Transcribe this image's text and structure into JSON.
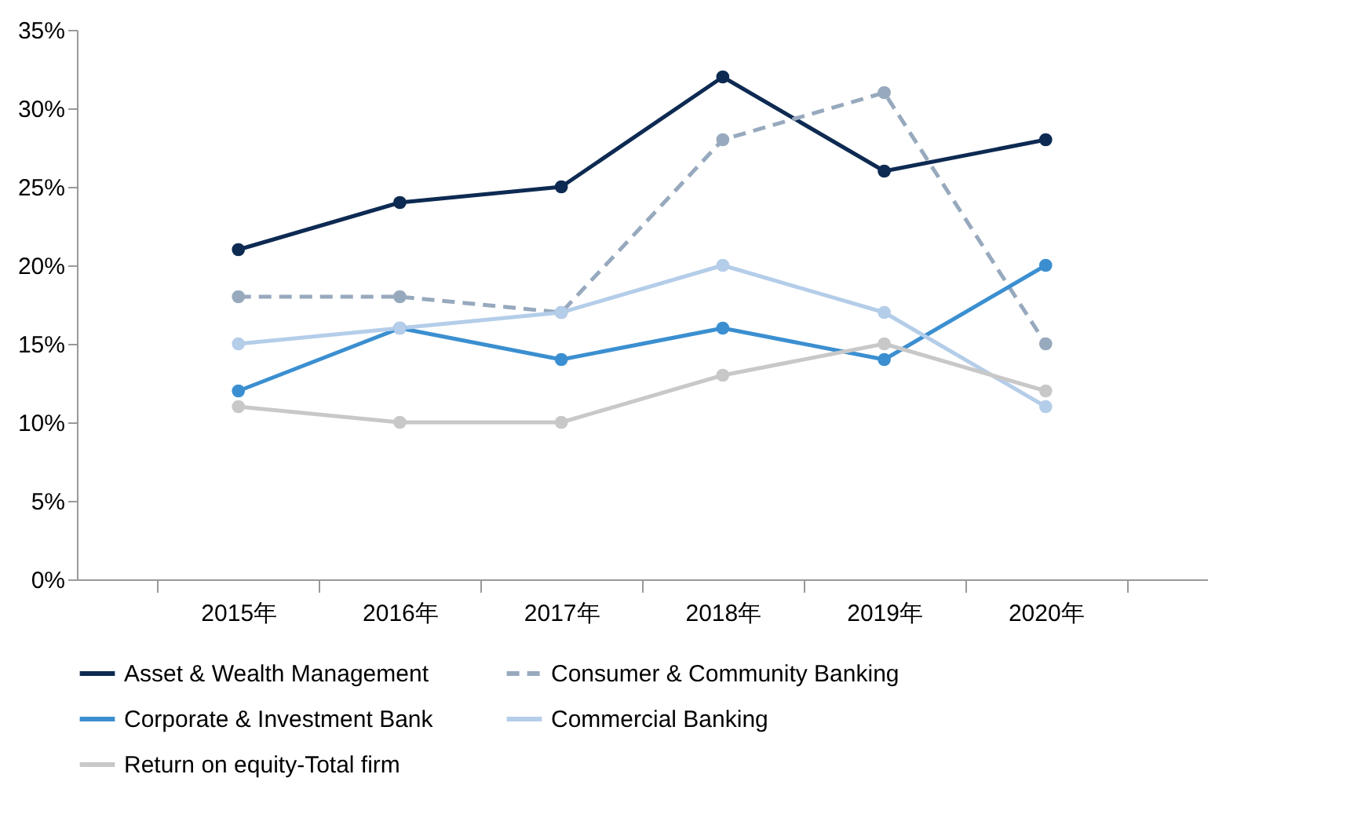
{
  "chart_data": {
    "type": "line",
    "categories": [
      "2015年",
      "2016年",
      "2017年",
      "2018年",
      "2019年",
      "2020年"
    ],
    "ylim": [
      0,
      35
    ],
    "yticks": [
      {
        "value": 0,
        "label": "0%"
      },
      {
        "value": 5,
        "label": "5%"
      },
      {
        "value": 10,
        "label": "10%"
      },
      {
        "value": 15,
        "label": "15%"
      },
      {
        "value": 20,
        "label": "20%"
      },
      {
        "value": 25,
        "label": "25%"
      },
      {
        "value": 30,
        "label": "30%"
      },
      {
        "value": 35,
        "label": "35%"
      }
    ],
    "grid": false,
    "legend": "bottom",
    "marker": "circle",
    "series": [
      {
        "name": "Asset & Wealth Management",
        "color": "#0d2a52",
        "values": [
          21,
          24,
          25,
          32,
          26,
          28
        ],
        "line_style": "solid"
      },
      {
        "name": "Consumer & Community Banking",
        "color": "#97a9bd",
        "values": [
          18,
          18,
          17,
          28,
          31,
          15
        ],
        "line_style": "dashed"
      },
      {
        "name": "Corporate & Investment Bank",
        "color": "#3b8fd0",
        "values": [
          12,
          16,
          14,
          16,
          14,
          20
        ],
        "line_style": "solid"
      },
      {
        "name": "Commercial Banking",
        "color": "#b4cde9",
        "values": [
          15,
          16,
          17,
          20,
          17,
          11
        ],
        "line_style": "solid"
      },
      {
        "name": "Return on equity-Total firm",
        "color": "#c8c8c8",
        "values": [
          11,
          10,
          10,
          13,
          15,
          12
        ],
        "line_style": "solid"
      }
    ]
  }
}
